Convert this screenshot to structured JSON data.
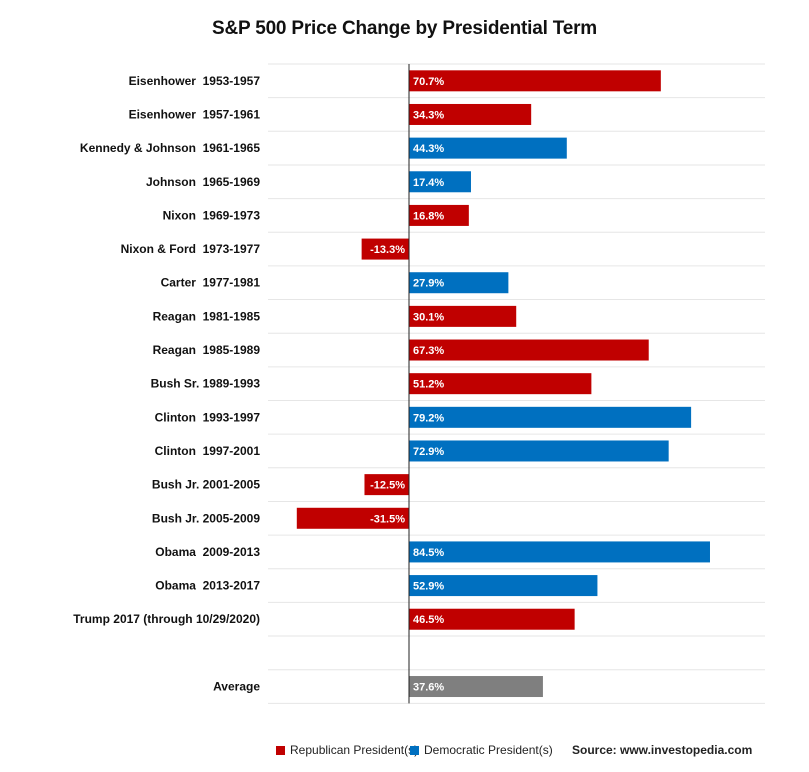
{
  "chart_data": {
    "type": "bar",
    "orientation": "horizontal",
    "title": "S&P 500 Price Change by Presidential Term",
    "categories": [
      "Eisenhower  1953-1957",
      "Eisenhower  1957-1961",
      "Kennedy & Johnson  1961-1965",
      "Johnson  1965-1969",
      "Nixon  1969-1973",
      "Nixon & Ford  1973-1977",
      "Carter  1977-1981",
      "Reagan  1981-1985",
      "Reagan  1985-1989",
      "Bush Sr. 1989-1993",
      "Clinton  1993-1997",
      "Clinton  1997-2001",
      "Bush Jr. 2001-2005",
      "Bush Jr. 2005-2009",
      "Obama  2009-2013",
      "Obama  2013-2017",
      "Trump 2017 (through 10/29/2020)",
      "",
      "Average"
    ],
    "values": [
      70.7,
      34.3,
      44.3,
      17.4,
      16.8,
      -13.3,
      27.9,
      30.1,
      67.3,
      51.2,
      79.2,
      72.9,
      -12.5,
      -31.5,
      84.5,
      52.9,
      46.5,
      null,
      37.6
    ],
    "value_labels": [
      "70.7%",
      "34.3%",
      "44.3%",
      "17.4%",
      "16.8%",
      "-13.3%",
      "27.9%",
      "30.1%",
      "67.3%",
      "51.2%",
      "79.2%",
      "72.9%",
      "-12.5%",
      "-31.5%",
      "84.5%",
      "52.9%",
      "46.5%",
      "",
      "37.6%"
    ],
    "party": [
      "R",
      "R",
      "D",
      "D",
      "R",
      "R",
      "D",
      "R",
      "R",
      "R",
      "D",
      "D",
      "R",
      "R",
      "D",
      "D",
      "R",
      "",
      "avg"
    ],
    "xlim": [
      -32,
      100
    ],
    "grid": true,
    "legend": {
      "position": "bottom-left",
      "items": [
        {
          "label": "Republican President(s)",
          "color": "#c00000"
        },
        {
          "label": "Democratic President(s)",
          "color": "#0070c0"
        }
      ]
    },
    "source": "Source: www.investopedia.com"
  },
  "colors": {
    "R": "#c00000",
    "D": "#0070c0",
    "avg": "#7f7f7f"
  }
}
